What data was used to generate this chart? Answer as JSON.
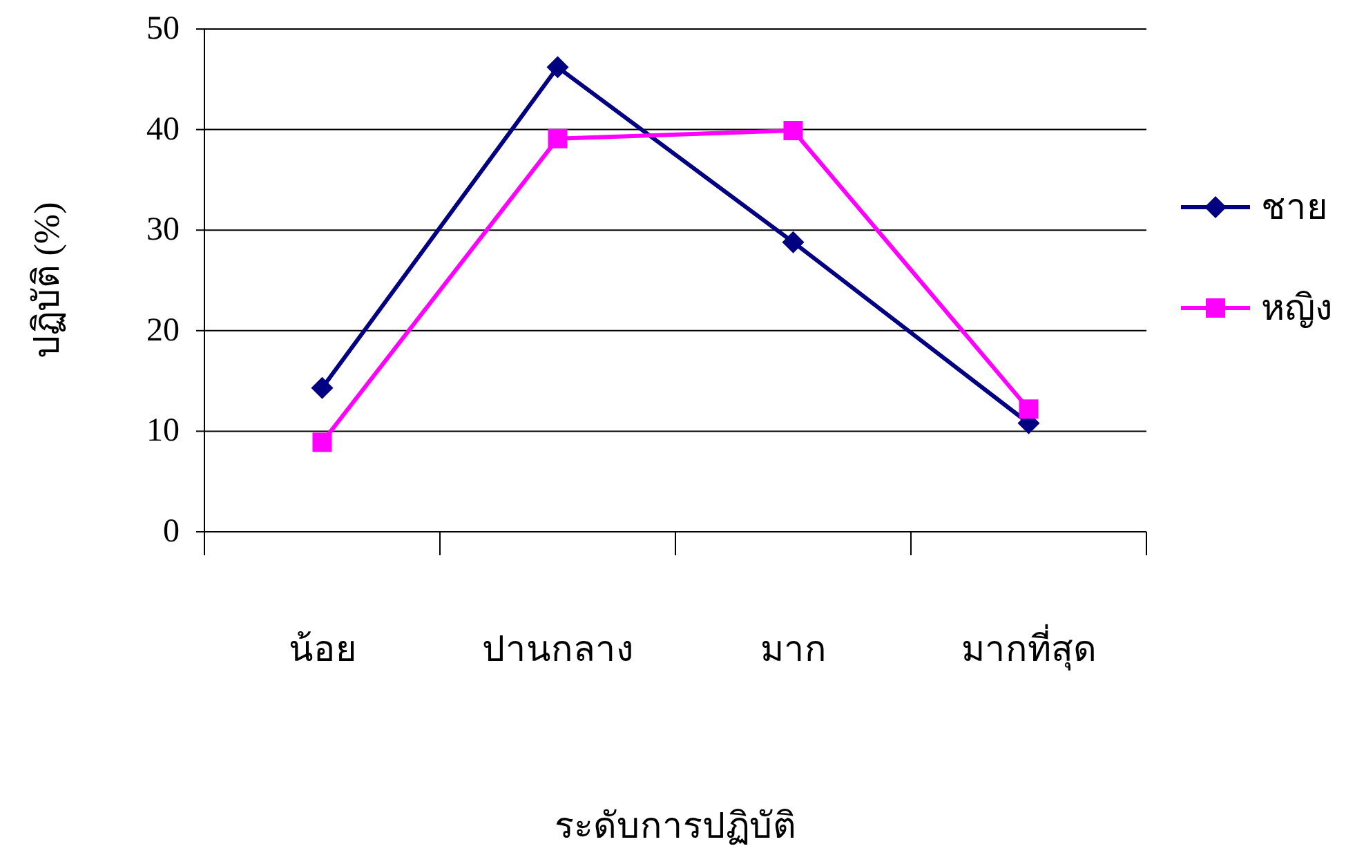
{
  "chart_data": {
    "type": "line",
    "xlabel": "ระดับการปฏิบัติ",
    "ylabel": "ปฏิบัติ (%)",
    "categories": [
      "น้อย",
      "ปานกลาง",
      "มาก",
      "มากที่สุด"
    ],
    "series": [
      {
        "name": "ชาย",
        "color": "#000080",
        "marker": "diamond",
        "values": [
          14.3,
          46.2,
          28.8,
          10.8
        ]
      },
      {
        "name": "หญิง",
        "color": "#ff00ff",
        "marker": "square",
        "values": [
          8.9,
          39.1,
          39.9,
          12.2
        ]
      }
    ],
    "ylim": [
      0,
      50
    ],
    "yticks": [
      0,
      10,
      20,
      30,
      40,
      50
    ],
    "grid": "y",
    "legend": "right",
    "line_style": "solid"
  }
}
